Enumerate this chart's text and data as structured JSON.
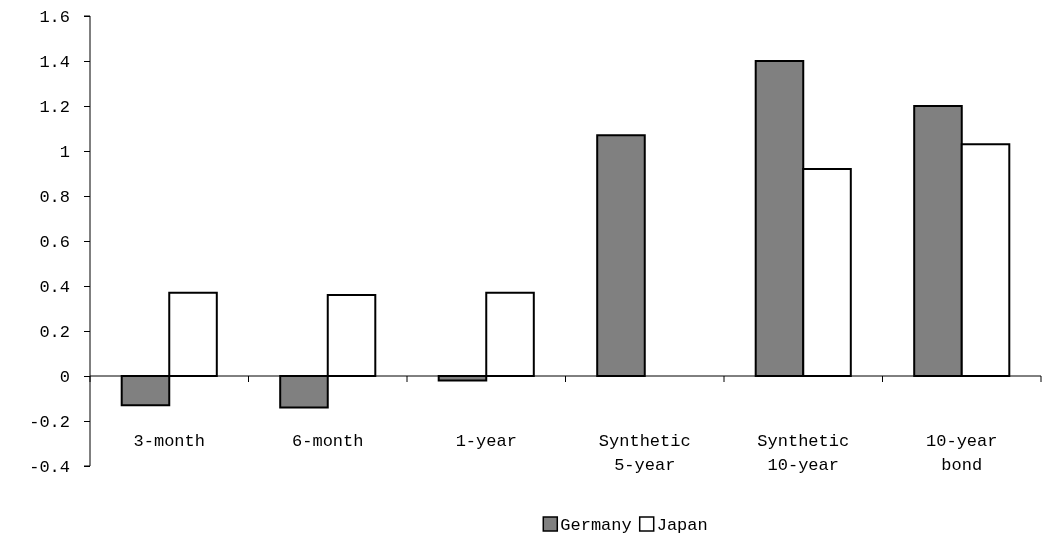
{
  "chart_data": {
    "type": "bar",
    "categories": [
      "3-month",
      "6-month",
      "1-year",
      "Synthetic 5-year",
      "Synthetic 10-year",
      "10-year bond"
    ],
    "series": [
      {
        "name": "Germany",
        "color": "#808080",
        "values": [
          -0.13,
          -0.14,
          -0.02,
          1.07,
          1.4,
          1.2
        ]
      },
      {
        "name": "Japan",
        "color": "#ffffff",
        "values": [
          0.37,
          0.36,
          0.37,
          null,
          0.92,
          1.03
        ]
      }
    ],
    "ylim": [
      -0.4,
      1.6
    ],
    "yticks": [
      {
        "value": -0.4,
        "label": "-0.4"
      },
      {
        "value": -0.2,
        "label": "-0.2"
      },
      0,
      {
        "value": 0.2,
        "label": "0.2"
      },
      {
        "value": 0.4,
        "label": "0.4"
      },
      {
        "value": 0.6,
        "label": "0.6"
      },
      {
        "value": 0.8,
        "label": "0.8"
      },
      1,
      {
        "value": 1.2,
        "label": "1.2"
      },
      {
        "value": 1.4,
        "label": "1.4"
      },
      {
        "value": 1.6,
        "label": "1.6"
      }
    ],
    "legend": "bottom"
  }
}
